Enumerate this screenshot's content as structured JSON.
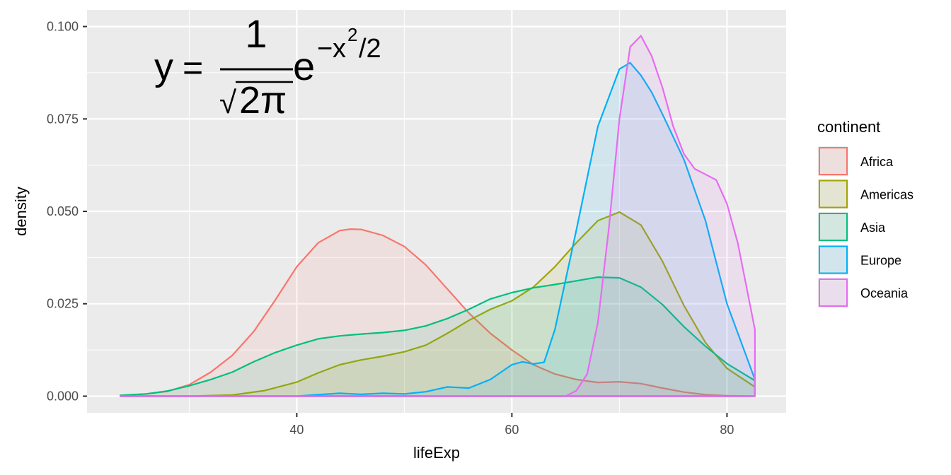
{
  "chart_data": {
    "type": "area",
    "title": "",
    "xlabel": "lifeExp",
    "ylabel": "density",
    "xlim": [
      20.5,
      85.5
    ],
    "ylim": [
      -0.0045,
      0.1045
    ],
    "x_ticks": [
      40,
      60,
      80
    ],
    "y_ticks": [
      0.0,
      0.025,
      0.05,
      0.075,
      0.1
    ],
    "x_tick_labels": [
      "40",
      "60",
      "80"
    ],
    "y_tick_labels": [
      "0.000",
      "0.025",
      "0.050",
      "0.075",
      "0.100"
    ],
    "grid": true,
    "legend": {
      "title": "continent",
      "position": "right"
    },
    "annotation": {
      "lhs": "y",
      "equals": "=",
      "numerator": "1",
      "sqrt": "√",
      "radicand": "2π",
      "base": "e",
      "exponent_minus": "−",
      "exponent_var": "x",
      "exponent_power": "2",
      "exponent_rest": "/2"
    },
    "series": [
      {
        "name": "Africa",
        "color": "#F8766D",
        "x": [
          23.6,
          26,
          28,
          30,
          32,
          34,
          36,
          38,
          40,
          42,
          44,
          45,
          46,
          48,
          50,
          52,
          54,
          56,
          58,
          60,
          62,
          64,
          66,
          68,
          70,
          72,
          74,
          76,
          78,
          80,
          82.6
        ],
        "y": [
          0.0002,
          0.0006,
          0.0013,
          0.0031,
          0.0065,
          0.011,
          0.0175,
          0.026,
          0.035,
          0.0415,
          0.0448,
          0.0452,
          0.0451,
          0.0435,
          0.0405,
          0.0355,
          0.029,
          0.0225,
          0.017,
          0.0125,
          0.0085,
          0.006,
          0.0045,
          0.0037,
          0.0039,
          0.0034,
          0.0022,
          0.0011,
          0.0004,
          0.0001,
          0.0
        ]
      },
      {
        "name": "Americas",
        "color": "#A3A500",
        "x": [
          23.6,
          30,
          34,
          37,
          40,
          42,
          44,
          46,
          48,
          50,
          52,
          54,
          56,
          58,
          60,
          62,
          64,
          66,
          68,
          70,
          72,
          74,
          76,
          78,
          80,
          82.6
        ],
        "y": [
          0.0,
          0.0,
          0.0003,
          0.0015,
          0.0038,
          0.0063,
          0.0085,
          0.0098,
          0.0108,
          0.012,
          0.0138,
          0.017,
          0.0205,
          0.0235,
          0.0258,
          0.0295,
          0.035,
          0.0415,
          0.0475,
          0.0498,
          0.0463,
          0.0365,
          0.0245,
          0.0145,
          0.0075,
          0.0025
        ]
      },
      {
        "name": "Asia",
        "color": "#00BF7D",
        "x": [
          23.6,
          26,
          28,
          30,
          32,
          34,
          36,
          38,
          40,
          42,
          44,
          46,
          48,
          50,
          52,
          54,
          56,
          58,
          60,
          62,
          64,
          66,
          68,
          70,
          72,
          74,
          76,
          78,
          80,
          82.6
        ],
        "y": [
          0.0002,
          0.0006,
          0.0014,
          0.0028,
          0.0045,
          0.0065,
          0.0093,
          0.0118,
          0.0138,
          0.0155,
          0.0163,
          0.0168,
          0.0172,
          0.0178,
          0.019,
          0.021,
          0.0235,
          0.0263,
          0.028,
          0.0293,
          0.0302,
          0.0312,
          0.0322,
          0.032,
          0.0295,
          0.0248,
          0.0188,
          0.0135,
          0.0088,
          0.0042
        ]
      },
      {
        "name": "Europe",
        "color": "#00B0F6",
        "x": [
          23.6,
          40,
          42,
          44,
          46,
          48,
          50,
          52,
          54,
          56,
          58,
          60,
          61,
          62,
          63,
          64,
          66,
          68,
          70,
          71,
          72,
          73,
          74,
          76,
          78,
          80,
          82.6
        ],
        "y": [
          0.0,
          0.0,
          0.0004,
          0.0008,
          0.0005,
          0.0008,
          0.0006,
          0.0012,
          0.0025,
          0.0022,
          0.0045,
          0.0085,
          0.0093,
          0.0087,
          0.0092,
          0.018,
          0.045,
          0.073,
          0.0885,
          0.0902,
          0.0868,
          0.0822,
          0.0763,
          0.064,
          0.0475,
          0.025,
          0.0045
        ]
      },
      {
        "name": "Oceania",
        "color": "#E76BF3",
        "x": [
          23.6,
          65,
          66,
          67,
          68,
          69,
          70,
          71,
          72,
          73,
          74,
          75,
          76,
          77,
          78,
          79,
          80,
          81,
          82.6
        ],
        "y": [
          0.0,
          0.0,
          0.0015,
          0.006,
          0.02,
          0.045,
          0.075,
          0.0945,
          0.0975,
          0.092,
          0.0835,
          0.073,
          0.0655,
          0.0615,
          0.06,
          0.0585,
          0.052,
          0.0415,
          0.018
        ]
      }
    ]
  }
}
